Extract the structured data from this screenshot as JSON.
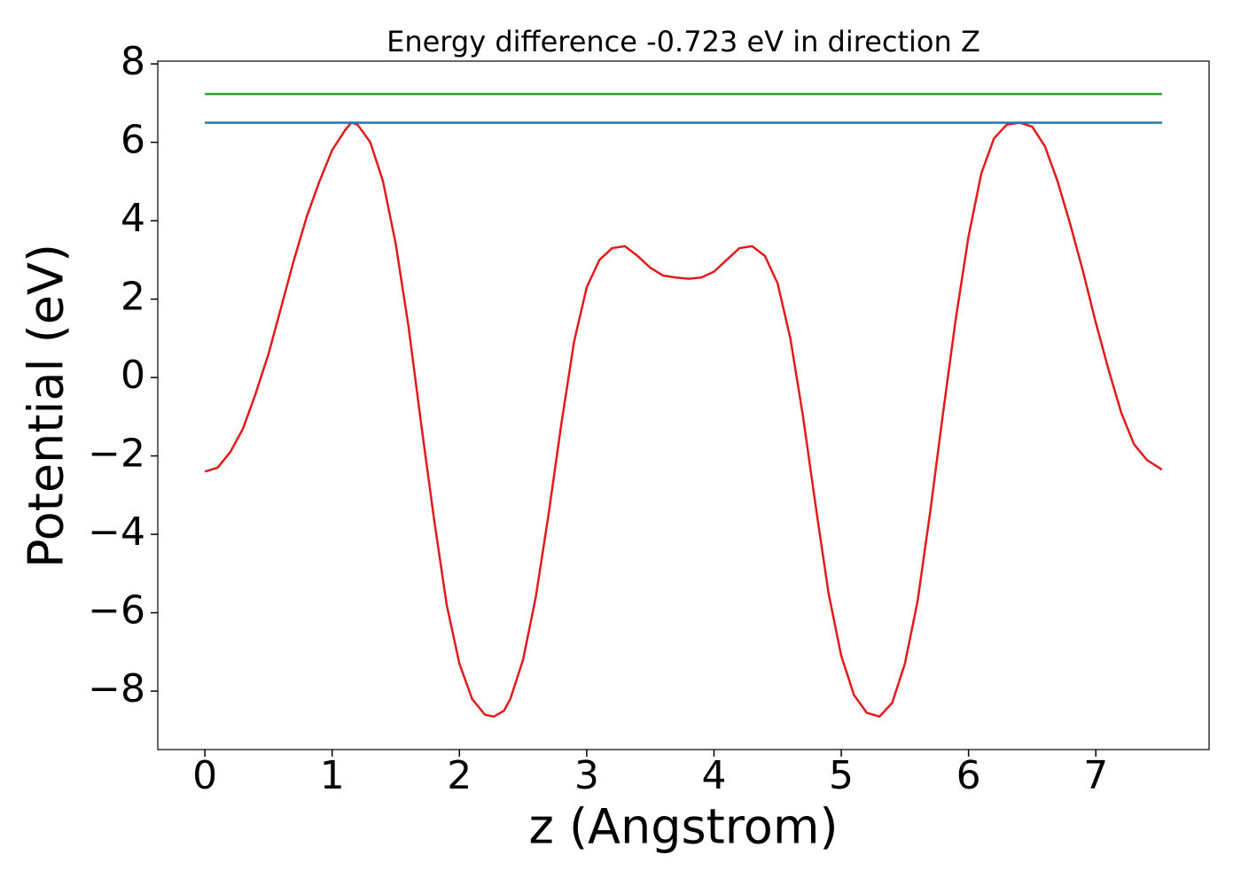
{
  "chart_data": {
    "type": "line",
    "title": "Energy difference -0.723 eV in direction Z",
    "xlabel": "z (Angstrom)",
    "ylabel": "Potential (eV)",
    "xlim": [
      -0.37,
      7.89
    ],
    "ylim": [
      -9.49,
      8.07
    ],
    "xticks": [
      0,
      1,
      2,
      3,
      4,
      5,
      6,
      7
    ],
    "yticks": [
      {
        "value": -8,
        "label": "−8"
      },
      {
        "value": -6,
        "label": "−6"
      },
      {
        "value": -4,
        "label": "−4"
      },
      {
        "value": -2,
        "label": "−2"
      },
      0,
      2,
      4,
      6,
      8
    ],
    "grid": false,
    "series": [
      {
        "color": "#e31a1c",
        "x": [
          0,
          0.1,
          0.2,
          0.3,
          0.4,
          0.5,
          0.6,
          0.7,
          0.8,
          0.9,
          1.0,
          1.1,
          1.15,
          1.2,
          1.3,
          1.4,
          1.5,
          1.6,
          1.7,
          1.8,
          1.9,
          2.0,
          2.1,
          2.2,
          2.27,
          2.35,
          2.4,
          2.5,
          2.6,
          2.7,
          2.8,
          2.9,
          3.0,
          3.1,
          3.2,
          3.3,
          3.4,
          3.5,
          3.6,
          3.7,
          3.8,
          3.9,
          4.0,
          4.1,
          4.2,
          4.3,
          4.4,
          4.5,
          4.6,
          4.7,
          4.8,
          4.9,
          5.0,
          5.1,
          5.2,
          5.3,
          5.4,
          5.5,
          5.6,
          5.7,
          5.8,
          5.9,
          6.0,
          6.1,
          6.2,
          6.3,
          6.4,
          6.5,
          6.6,
          6.7,
          6.8,
          6.9,
          7.0,
          7.1,
          7.2,
          7.3,
          7.4,
          7.52
        ],
        "values": [
          -2.4,
          -2.3,
          -1.9,
          -1.3,
          -0.4,
          0.6,
          1.8,
          3.0,
          4.1,
          5.0,
          5.8,
          6.3,
          6.5,
          6.45,
          6.0,
          5.0,
          3.4,
          1.3,
          -1.2,
          -3.6,
          -5.8,
          -7.3,
          -8.2,
          -8.6,
          -8.65,
          -8.5,
          -8.2,
          -7.2,
          -5.6,
          -3.5,
          -1.2,
          0.9,
          2.3,
          3.0,
          3.3,
          3.35,
          3.1,
          2.8,
          2.6,
          2.55,
          2.52,
          2.55,
          2.7,
          3.0,
          3.3,
          3.35,
          3.1,
          2.4,
          1.0,
          -1.0,
          -3.3,
          -5.5,
          -7.1,
          -8.1,
          -8.55,
          -8.65,
          -8.3,
          -7.3,
          -5.7,
          -3.4,
          -0.9,
          1.5,
          3.6,
          5.2,
          6.1,
          6.45,
          6.5,
          6.4,
          5.9,
          5.0,
          3.9,
          2.7,
          1.4,
          0.2,
          -0.9,
          -1.7,
          -2.1,
          -2.35
        ]
      },
      {
        "color": "#1f77b4",
        "x": [
          0,
          7.52
        ],
        "values": [
          6.5,
          6.5
        ]
      },
      {
        "color": "#2ca02c",
        "x": [
          0,
          7.52
        ],
        "values": [
          7.23,
          7.23
        ]
      }
    ]
  }
}
